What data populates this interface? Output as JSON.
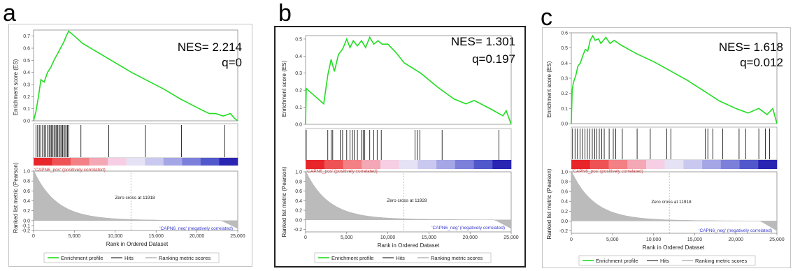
{
  "panels": [
    {
      "letter": "a",
      "nes_label": "NES= 2.214",
      "q_label": "q=0",
      "ylabel_top": "Enrichment score (ES)",
      "ylabel_bottom": "Ranked list metric (Pearson)",
      "xlabel": "Rank in Ordered Dataset",
      "pos_label": "'CAPN6_pos' (positively correlated)",
      "neg_label": "'CAPN6_neg' (negatively correlated)",
      "zero_cross_label": "Zero cross at 11918",
      "legend": {
        "enrichment": "Enrichment profile",
        "hits": "Hits",
        "ranking": "Ranking metric scores"
      }
    },
    {
      "letter": "b",
      "nes_label": "NES= 1.301",
      "q_label": "q=0.197",
      "ylabel_top": "Enrichment score (ES)",
      "ylabel_bottom": "Ranked list metric (Pearson)",
      "xlabel": "Rank in Ordered Dataset",
      "pos_label": "'CAPN6_pos' (positively correlated)",
      "neg_label": "'CAPN6_neg' (negatively correlated)",
      "zero_cross_label": "Zero cross at 11928",
      "legend": {
        "enrichment": "Enrichment profile",
        "hits": "Hits",
        "ranking": "Ranking metric scores"
      }
    },
    {
      "letter": "c",
      "nes_label": "NES= 1.618",
      "q_label": "q=0.012",
      "ylabel_top": "Enrichment score (ES)",
      "ylabel_bottom": "Ranked list metric (Pearson)",
      "xlabel": "Rank in Ordered Dataset",
      "pos_label": "'CAPN6_pos' (positively correlated)",
      "neg_label": "'CAPN6_neg' (negatively correlated)",
      "zero_cross_label": "Zero cross at 11918",
      "legend": {
        "enrichment": "Enrichment profile",
        "hits": "Hits",
        "ranking": "Ranking metric scores"
      }
    }
  ],
  "chart_data": [
    {
      "type": "line",
      "panel": "a",
      "es_ylim": [
        0,
        0.75
      ],
      "es_yticks": [
        "0.0",
        "0.1",
        "0.2",
        "0.3",
        "0.4",
        "0.5",
        "0.6",
        "0.7"
      ],
      "es_x": [
        0,
        300,
        600,
        900,
        1300,
        1700,
        2100,
        2500,
        2900,
        3300,
        3700,
        4000,
        4300,
        5000,
        6000,
        8000,
        10000,
        12000,
        14000,
        16000,
        18000,
        20000,
        21500,
        22300,
        23200,
        24100,
        24600,
        25000
      ],
      "es_y": [
        0.0,
        0.08,
        0.2,
        0.34,
        0.32,
        0.4,
        0.44,
        0.5,
        0.55,
        0.6,
        0.65,
        0.7,
        0.74,
        0.7,
        0.64,
        0.56,
        0.48,
        0.4,
        0.33,
        0.26,
        0.18,
        0.11,
        0.06,
        0.06,
        0.04,
        0.06,
        0.02,
        0.0
      ],
      "hits": [
        300,
        500,
        700,
        900,
        1100,
        1300,
        1500,
        1700,
        1900,
        2050,
        2200,
        2350,
        2500,
        2650,
        2800,
        2950,
        3100,
        3250,
        3400,
        3550,
        3700,
        3850,
        4000,
        4150,
        4300,
        5800,
        9200,
        13700,
        18100,
        23400
      ],
      "metric_ylim": [
        -0.2,
        1.0
      ],
      "metric_yticks": [
        "1.0",
        "0.8",
        "0.6",
        "0.4",
        "0.2",
        "0.0",
        "-0.1",
        "-0.2"
      ],
      "metric_start": 1.0,
      "metric_end": -0.16,
      "zero_cross": 11918,
      "xlim": [
        0,
        25000
      ],
      "xticks": [
        "0",
        "5,000",
        "10,000",
        "15,000",
        "20,000",
        "25,000"
      ]
    },
    {
      "type": "line",
      "panel": "b",
      "es_ylim": [
        0,
        0.52
      ],
      "es_yticks": [
        "0.0",
        "0.1",
        "0.2",
        "0.3",
        "0.4",
        "0.5"
      ],
      "es_x": [
        0,
        80,
        2200,
        2700,
        3100,
        3500,
        4000,
        4500,
        5000,
        5400,
        5800,
        6300,
        6800,
        7300,
        7800,
        8300,
        8800,
        9300,
        10000,
        11000,
        12000,
        14000,
        16000,
        18000,
        19500,
        20500,
        22500,
        24000,
        24400,
        25000
      ],
      "es_y": [
        0.0,
        0.21,
        0.12,
        0.29,
        0.38,
        0.31,
        0.41,
        0.44,
        0.5,
        0.45,
        0.49,
        0.46,
        0.49,
        0.45,
        0.51,
        0.47,
        0.49,
        0.47,
        0.47,
        0.42,
        0.36,
        0.3,
        0.22,
        0.15,
        0.12,
        0.14,
        0.09,
        0.05,
        0.08,
        0.0
      ],
      "hits": [
        80,
        2700,
        3100,
        3300,
        4200,
        4500,
        5000,
        5400,
        5700,
        5900,
        6300,
        6800,
        7000,
        7200,
        7800,
        8300,
        8700,
        9200,
        13300,
        13600,
        13900,
        16600,
        23500
      ],
      "metric_ylim": [
        -0.25,
        1.0
      ],
      "metric_yticks": [
        "1.0",
        "0.8",
        "0.6",
        "0.4",
        "0.2",
        "0.0",
        "-0.2"
      ],
      "metric_start": 1.0,
      "metric_end": -0.18,
      "zero_cross": 11928,
      "xlim": [
        0,
        25000
      ],
      "xticks": [
        "0",
        "5,000",
        "10,000",
        "15,000",
        "20,000",
        "25,000"
      ]
    },
    {
      "type": "line",
      "panel": "c",
      "es_ylim": [
        0,
        0.6
      ],
      "es_yticks": [
        "0.0",
        "0.1",
        "0.2",
        "0.3",
        "0.4",
        "0.5",
        "0.6"
      ],
      "es_x": [
        0,
        100,
        250,
        550,
        800,
        1100,
        1400,
        1700,
        2000,
        2300,
        2600,
        2900,
        3300,
        3600,
        4200,
        4700,
        5200,
        6000,
        7000,
        8000,
        10000,
        12000,
        14000,
        16000,
        18000,
        20000,
        21500,
        22800,
        23800,
        24500,
        25000
      ],
      "es_y": [
        0.0,
        0.22,
        0.27,
        0.32,
        0.38,
        0.4,
        0.45,
        0.49,
        0.48,
        0.55,
        0.58,
        0.55,
        0.56,
        0.53,
        0.57,
        0.53,
        0.55,
        0.52,
        0.49,
        0.46,
        0.41,
        0.35,
        0.29,
        0.22,
        0.15,
        0.1,
        0.07,
        0.1,
        0.06,
        0.1,
        0.0
      ],
      "hits": [
        150,
        450,
        750,
        1050,
        1350,
        1650,
        1950,
        2250,
        2550,
        2850,
        3100,
        3400,
        3700,
        4000,
        4600,
        5100,
        5400,
        6200,
        8000,
        9600,
        11600,
        12100,
        16300,
        16600,
        17200,
        18400,
        20400,
        21200,
        22800,
        23600,
        24100
      ],
      "metric_ylim": [
        -0.25,
        1.0
      ],
      "metric_yticks": [
        "1.0",
        "0.8",
        "0.6",
        "0.4",
        "0.2",
        "0.0",
        "-0.2"
      ],
      "metric_start": 1.0,
      "metric_end": -0.2,
      "zero_cross": 11918,
      "xlim": [
        0,
        25000
      ],
      "xticks": [
        "0",
        "5,000",
        "10,000",
        "15,000",
        "20,000",
        "25,000"
      ]
    }
  ],
  "colors": {
    "es_line": "#22dd22",
    "hit_line": "#000000",
    "metric_fill": "#bbbbbb",
    "pos_label": "#d23030",
    "neg_label": "#3a3ad0",
    "heat": [
      "#e8262a",
      "#ef5255",
      "#f28084",
      "#f4a7b4",
      "#f6cfe4",
      "#e6e2f5",
      "#c9c9ef",
      "#a4a6e6",
      "#7d80da",
      "#5158cc",
      "#2a24b2"
    ]
  }
}
